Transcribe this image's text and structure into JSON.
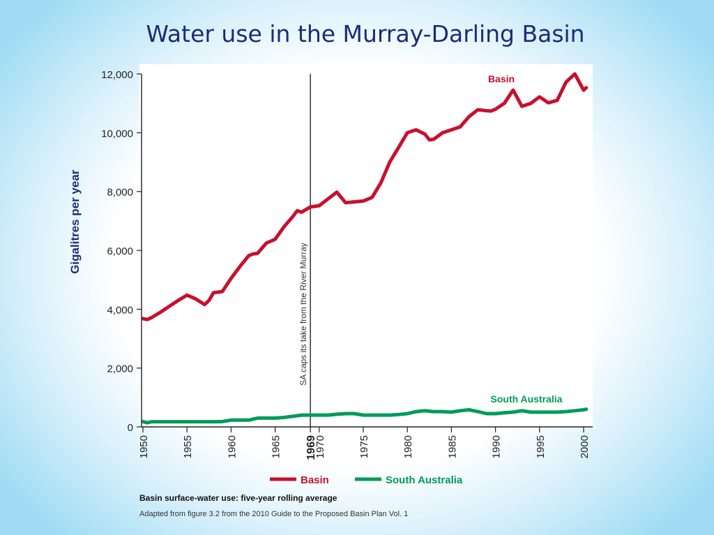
{
  "chart_data": {
    "type": "line",
    "title": "Water use in the Murray-Darling Basin",
    "ylabel": "Gigalitres per year",
    "xlabel": "",
    "xlim": [
      1950,
      2000
    ],
    "ylim": [
      0,
      12000
    ],
    "x_ticks": [
      "1950",
      "1955",
      "1960",
      "1965",
      "1969",
      "1970",
      "1975",
      "1980",
      "1985",
      "1990",
      "1995",
      "2000"
    ],
    "y_ticks": [
      "0",
      "2,000",
      "4,000",
      "6,000",
      "8,000",
      "10,000",
      "12,000"
    ],
    "grid": false,
    "legend_position": "bottom",
    "annotation": {
      "x": 1969,
      "text": "SA caps its take from the River Murray"
    },
    "series": [
      {
        "name": "Basin",
        "color": "#c8102e",
        "x": [
          1950,
          1950.5,
          1951,
          1952,
          1953,
          1954,
          1955,
          1956,
          1957,
          1957.5,
          1958,
          1959,
          1960,
          1961,
          1962,
          1962.5,
          1963,
          1964,
          1965,
          1966,
          1967,
          1967.5,
          1968,
          1969,
          1970,
          1971,
          1972,
          1973,
          1974,
          1975,
          1976,
          1977,
          1978,
          1979,
          1980,
          1981,
          1982,
          1982.5,
          1983,
          1984,
          1985,
          1986,
          1987,
          1988,
          1989,
          1989.5,
          1990,
          1991,
          1992,
          1993,
          1994,
          1995,
          1996,
          1997,
          1998,
          1999,
          2000,
          2000.3
        ],
        "values": [
          3680,
          3650,
          3720,
          3900,
          4100,
          4300,
          4480,
          4350,
          4160,
          4300,
          4560,
          4600,
          5050,
          5450,
          5820,
          5880,
          5900,
          6250,
          6380,
          6800,
          7150,
          7350,
          7300,
          7480,
          7520,
          7750,
          7980,
          7620,
          7650,
          7680,
          7800,
          8300,
          9000,
          9500,
          10000,
          10100,
          9950,
          9760,
          9780,
          10000,
          10100,
          10200,
          10550,
          10780,
          10750,
          10740,
          10800,
          11000,
          11450,
          10900,
          11000,
          11220,
          11020,
          11100,
          11720,
          12000,
          11450,
          11530
        ]
      },
      {
        "name": "South Australia",
        "color": "#009b5a",
        "x": [
          1950,
          1950.5,
          1951,
          1952,
          1953,
          1954,
          1955,
          1956,
          1957,
          1958,
          1959,
          1960,
          1961,
          1962,
          1963,
          1964,
          1965,
          1966,
          1967,
          1968,
          1969,
          1970,
          1971,
          1972,
          1973,
          1974,
          1975,
          1976,
          1977,
          1978,
          1979,
          1980,
          1981,
          1982,
          1983,
          1984,
          1985,
          1986,
          1987,
          1988,
          1989,
          1990,
          1991,
          1992,
          1993,
          1994,
          1995,
          1996,
          1997,
          1998,
          1999,
          2000,
          2000.3
        ],
        "values": [
          180,
          140,
          175,
          175,
          175,
          175,
          175,
          175,
          175,
          175,
          180,
          230,
          230,
          230,
          300,
          300,
          300,
          320,
          360,
          400,
          400,
          400,
          400,
          430,
          450,
          450,
          400,
          400,
          400,
          400,
          420,
          450,
          520,
          550,
          520,
          520,
          500,
          550,
          580,
          520,
          450,
          450,
          480,
          500,
          550,
          500,
          500,
          500,
          500,
          520,
          550,
          580,
          600
        ]
      }
    ]
  },
  "caption": {
    "line1": "Basin surface-water use: five-year rolling average",
    "line2": "Adapted from figure 3.2 from the 2010 Guide to the Proposed Basin Plan Vol. 1"
  }
}
